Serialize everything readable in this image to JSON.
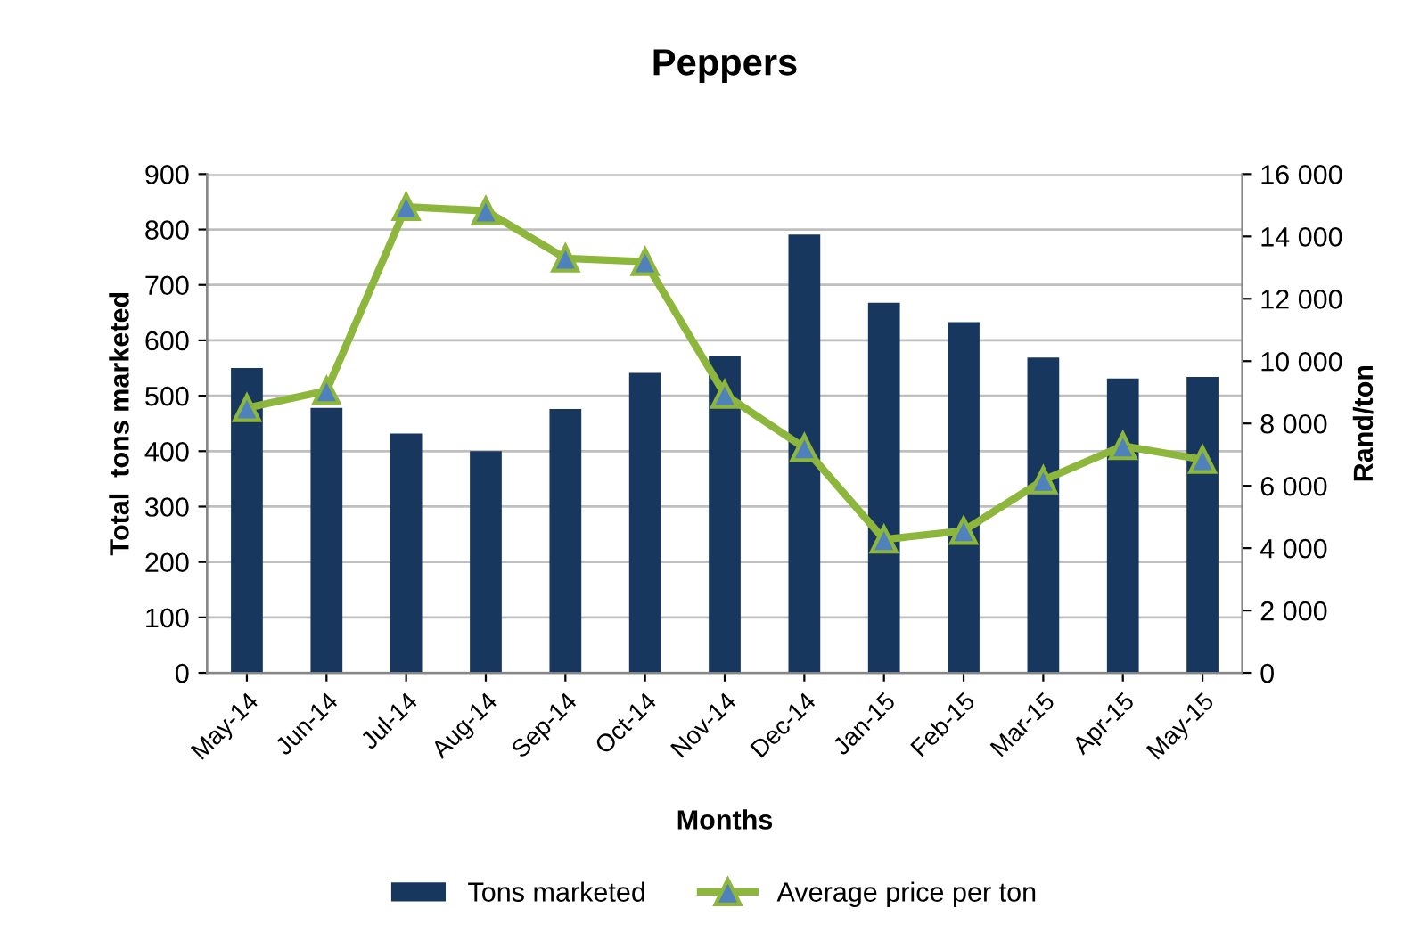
{
  "chart_data": {
    "type": "bar",
    "title": "Peppers",
    "xlabel": "Months",
    "ylabel": "Total  tons marketed",
    "y2label": "Rand/ton",
    "categories": [
      "May-14",
      "Jun-14",
      "Jul-14",
      "Aug-14",
      "Sep-14",
      "Oct-14",
      "Nov-14",
      "Dec-14",
      "Jan-15",
      "Feb-15",
      "Mar-15",
      "Apr-15",
      "May-15"
    ],
    "series": [
      {
        "name": "Tons marketed",
        "color": "#17375e",
        "values": [
          550,
          478,
          432,
          400,
          476,
          541,
          571,
          791,
          668,
          633,
          569,
          531,
          534
        ]
      },
      {
        "name": "Average price per ton",
        "type": "line",
        "axis": "y2",
        "color": "#8db63c",
        "marker": "triangle",
        "values": [
          8500,
          9050,
          14950,
          14820,
          13300,
          13190,
          8930,
          7220,
          4280,
          4560,
          6180,
          7280,
          6840
        ]
      }
    ],
    "ylim": [
      0,
      900
    ],
    "yticks": [
      0,
      100,
      200,
      300,
      400,
      500,
      600,
      700,
      800,
      900
    ],
    "y2lim": [
      0,
      16000
    ],
    "y2ticks": [
      {
        "value": 0,
        "label": "0"
      },
      {
        "value": 2000,
        "label": "2 000"
      },
      {
        "value": 4000,
        "label": "4 000"
      },
      {
        "value": 6000,
        "label": "6 000"
      },
      {
        "value": 8000,
        "label": "8 000"
      },
      {
        "value": 10000,
        "label": "10 000"
      },
      {
        "value": 12000,
        "label": "12 000"
      },
      {
        "value": 14000,
        "label": "14 000"
      },
      {
        "value": 16000,
        "label": "16 000"
      }
    ],
    "grid": "y",
    "legend": "bottom"
  }
}
